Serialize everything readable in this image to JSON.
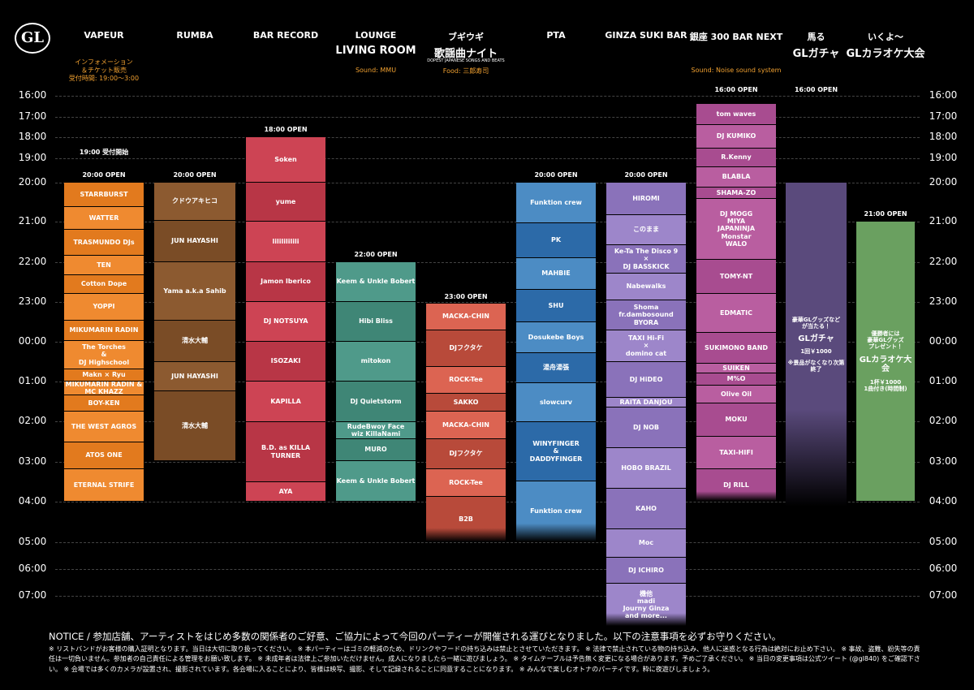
{
  "logo": "GL",
  "times": [
    "16:00",
    "17:00",
    "18:00",
    "19:00",
    "20:00",
    "21:00",
    "22:00",
    "23:00",
    "00:00",
    "01:00",
    "02:00",
    "03:00",
    "04:00",
    "05:00",
    "06:00",
    "07:00"
  ],
  "columns": [
    {
      "name": "VAPEUR",
      "info": [
        "インフォメーション",
        "＆チケット販売",
        "受付時間: 19:00〜3:00"
      ],
      "open": [
        "19:00 受付開始",
        "20:00 OPEN"
      ],
      "blocks": [
        "STARRBURST",
        "WATTER",
        "TRASMUNDO DJs",
        "TEN",
        "Cotton Dope",
        "YOPPI",
        "MIKUMARIN RADIN",
        "The Torches\n&\nDJ Highschool",
        "Makn × Ryu",
        "MIKUMARIN RADIN & MC KHAZZ",
        "BOY-KEN",
        "THE WEST AGROS",
        "ATOS ONE",
        "ETERNAL STRIFE"
      ]
    },
    {
      "name": "RUMBA",
      "open": [
        "20:00 OPEN"
      ],
      "blocks": [
        "クドウアキヒコ",
        "JUN HAYASHI",
        "Yama a.k.a Sahib",
        "清水大輔",
        "JUN HAYASHI",
        "清水大輔"
      ]
    },
    {
      "name": "BAR RECORD",
      "open": [
        "18:00 OPEN"
      ],
      "blocks": [
        "Soken",
        "yume",
        "lililililili",
        "Jamon Iberico",
        "DJ NOTSUYA",
        "ISOZAKI",
        "KAPILLA",
        "B.D. as KILLA TURNER",
        "AYA"
      ]
    },
    {
      "name": "LOUNGE",
      "logo": "LIVING ROOM",
      "info": [
        "Sound: MMU"
      ],
      "open": [
        "22:00 OPEN"
      ],
      "blocks": [
        "Keem & Unkle Bobert",
        "Hibi Bliss",
        "mitokon",
        "DJ Quietstorm",
        "RudeBwoy Face\nwiz KillaNami",
        "MURO",
        "Keem & Unkle Bobert"
      ]
    },
    {
      "name": "ブギウギ",
      "logo": "歌謡曲ナイト",
      "logo_sub": "DOPEST JAPANESE SONGS AND BEATS",
      "info": [
        "Food: 三郎寿司"
      ],
      "open": [
        "23:00 OPEN"
      ],
      "blocks": [
        "MACKA-CHIN",
        "DJフクタケ",
        "ROCK-Tee",
        "SAKKO",
        "MACKA-CHIN",
        "DJフクタケ",
        "ROCK-Tee",
        "B2B"
      ]
    },
    {
      "name": "PTA",
      "open": [
        "20:00 OPEN"
      ],
      "blocks": [
        "Funktion crew",
        "PK",
        "MAHBIE",
        "SHU",
        "Dosukebe Boys",
        "湯舟湯張",
        "slowcurv",
        "WINYFINGER\n&\nDADDYFINGER",
        "Funktion crew"
      ]
    },
    {
      "name": "GINZA SUKI BAR",
      "open": [
        "20:00 OPEN"
      ],
      "blocks": [
        "HIROMI",
        "このまま",
        "Ke-Ta The Disco 9\n×\nDJ BASSKICK",
        "Nabewalks",
        "Shoma fr.dambosound\nBYORA",
        "TAXI Hi-Fi\n×\ndomino cat",
        "DJ HiDEO",
        "RAITA DANJOU",
        "DJ NOB",
        "HOBO BRAZIL",
        "KAHO",
        "Moc",
        "DJ ICHIRO",
        "機他\nmadi\nJourny Ginza\nand more..."
      ]
    },
    {
      "name": "銀座 300 BAR NEXT",
      "info": [
        "Sound: Noise sound system"
      ],
      "open": [
        "16:00 OPEN"
      ],
      "blocks": [
        "tom waves",
        "DJ KUMIKO",
        "R.Kenny",
        "BLABLA",
        "SHAMA-ZO",
        "DJ MOGG\nMIYA\nJAPANINJA\nMonstar\nWALO",
        "TOMY-NT",
        "EDMATIC",
        "SUKIMONO BAND",
        "SUIKEN",
        "M%O",
        "Olive Oil",
        "MOKU",
        "TAXI-HIFI",
        "DJ RILL"
      ]
    },
    {
      "name": "馬る",
      "logo": "GLガチャ",
      "open": [
        "16:00 OPEN"
      ],
      "blocks": [
        [
          "豪華GLグッズなど\nが当たる！",
          "GLガチャ",
          "1回￥1000",
          "※景品がなくなり次第終了"
        ]
      ]
    },
    {
      "name": "いくよ～",
      "logo": "GLカラオケ大会",
      "open": [
        "21:00 OPEN"
      ],
      "blocks": [
        [
          "優勝者には\n豪華GLグッズ\nプレゼント！",
          "GLカラオケ大会",
          "1杯￥1000\n1曲付き(時間制)"
        ]
      ]
    }
  ],
  "notice": {
    "title": "NOTICE / 参加店舗、アーティストをはじめ多数の関係者のご好意、ご協力によって今回のパーティーが開催される運びとなりました。以下の注意事項を必ずお守りください。",
    "body": "※ リストバンドがお客様の購入証明となります。当日は大切に取り扱ってください。 ※ 本パーティーはゴミの軽減のため、ドリンクやフードの持ち込みは禁止とさせていただきます。 ※ 法律で禁止されている物の持ち込み、他人に迷惑となる行為は絶対にお止め下さい。 ※ 事故、盗難、紛失等の責任は一切負いません。参加者の自己責任による管理をお願い致します。 ※ 未成年者は法律上ご参加いただけません。成人になりましたら一緒に遊びましょう。 ※ タイムテーブルは予告無く変更になる場合があります。予めご了承ください。 ※ 当日の変更事項は公式ツイート (@gl840) をご確認下さい。 ※ 会場では多くのカメラが設置され、撮影されています。各会場に入ることにより、皆様は映写、撮影、そして記録されることに同意することになります。 ※ みんなで楽しむオトナのパーティです。粋に夜遊びしましょう。"
  }
}
